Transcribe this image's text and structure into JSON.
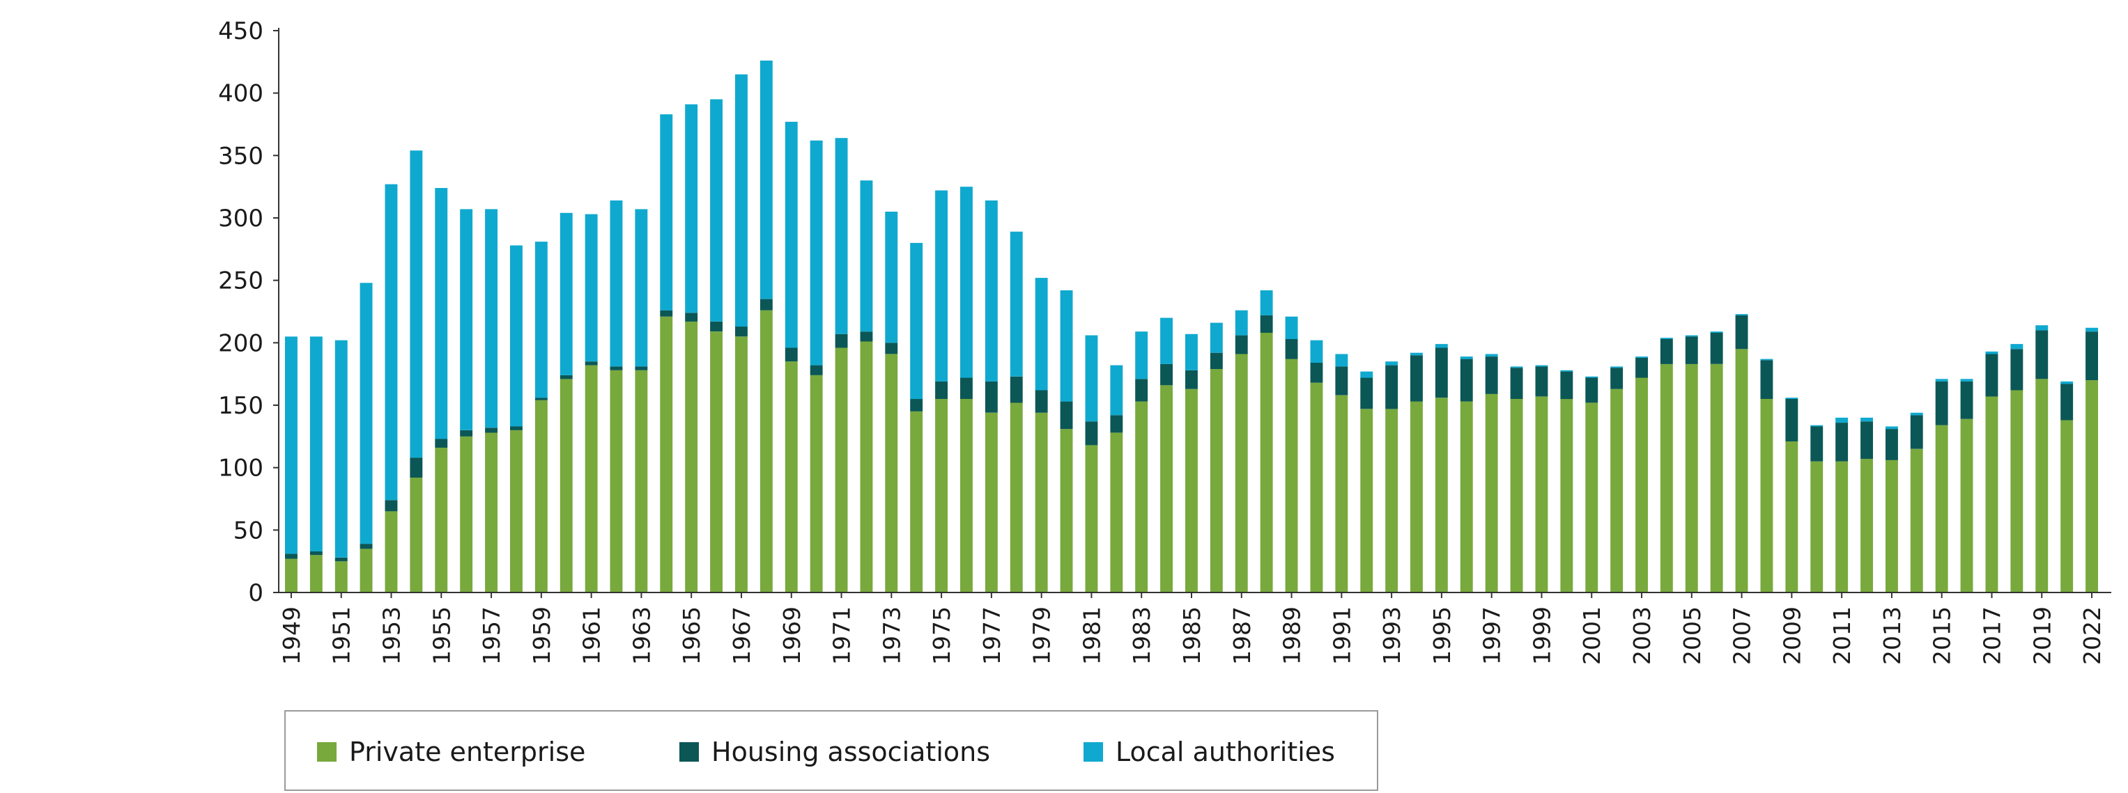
{
  "colors": {
    "private": "#78a93c",
    "housing": "#0b5756",
    "local": "#0fa9cf",
    "axis": "#333333",
    "legend_border": "#9a9a9a"
  },
  "legend": [
    {
      "key": "private",
      "label": "Private enterprise"
    },
    {
      "key": "housing",
      "label": "Housing associations"
    },
    {
      "key": "local",
      "label": "Local authorities"
    }
  ],
  "chart_data": {
    "type": "bar",
    "stacked": true,
    "ylim": [
      0,
      450
    ],
    "yticks": [
      0,
      50,
      100,
      150,
      200,
      250,
      300,
      350,
      400,
      450
    ],
    "legend_position": "bottom-left",
    "grid": false,
    "xtick_labels": [
      "1949",
      "1951",
      "1953",
      "1955",
      "1957",
      "1959",
      "1961",
      "1963",
      "1965",
      "1967",
      "1969",
      "1971",
      "1973",
      "1975",
      "1977",
      "1979",
      "1981",
      "1983",
      "1985",
      "1987",
      "1989",
      "1991",
      "1993",
      "1995",
      "1997",
      "1999",
      "2001",
      "2003",
      "2005",
      "2007",
      "2009",
      "2011",
      "2013",
      "2015",
      "2017",
      "2019",
      "2022"
    ],
    "categories": [
      "1949",
      "1950",
      "1951",
      "1952",
      "1953",
      "1954",
      "1955",
      "1956",
      "1957",
      "1958",
      "1959",
      "1960",
      "1961",
      "1962",
      "1963",
      "1964",
      "1965",
      "1966",
      "1967",
      "1968",
      "1969",
      "1970",
      "1971",
      "1972",
      "1973",
      "1974",
      "1975",
      "1976",
      "1977",
      "1978",
      "1979",
      "1980",
      "1981",
      "1982",
      "1983",
      "1984",
      "1985",
      "1986",
      "1987",
      "1988",
      "1989",
      "1990",
      "1991",
      "1992",
      "1993",
      "1994",
      "1995",
      "1996",
      "1997",
      "1998",
      "1999",
      "2000",
      "2001",
      "2002",
      "2003",
      "2004",
      "2005",
      "2006",
      "2007",
      "2008",
      "2009",
      "2010",
      "2011",
      "2012",
      "2013",
      "2014",
      "2015",
      "2016",
      "2017",
      "2018",
      "2019",
      "2021",
      "2022"
    ],
    "series": [
      {
        "name": "Private enterprise",
        "key": "private",
        "values": [
          27,
          30,
          25,
          35,
          65,
          92,
          116,
          125,
          128,
          130,
          154,
          171,
          182,
          178,
          178,
          221,
          217,
          209,
          205,
          226,
          185,
          174,
          196,
          201,
          191,
          145,
          155,
          155,
          144,
          152,
          144,
          131,
          118,
          128,
          153,
          166,
          163,
          179,
          191,
          208,
          187,
          168,
          158,
          147,
          147,
          153,
          156,
          153,
          159,
          155,
          157,
          155,
          152,
          163,
          172,
          183,
          183,
          183,
          195,
          155,
          121,
          105,
          105,
          107,
          106,
          115,
          134,
          139,
          157,
          162,
          171,
          138,
          170
        ]
      },
      {
        "name": "Housing associations",
        "key": "housing",
        "values": [
          4,
          3,
          3,
          4,
          9,
          16,
          7,
          5,
          4,
          3,
          2,
          3,
          3,
          3,
          3,
          5,
          7,
          8,
          8,
          9,
          11,
          8,
          11,
          8,
          9,
          10,
          14,
          17,
          25,
          21,
          18,
          22,
          19,
          14,
          18,
          17,
          15,
          13,
          15,
          14,
          16,
          16,
          23,
          25,
          35,
          37,
          40,
          34,
          30,
          25,
          24,
          22,
          20,
          17,
          16,
          20,
          22,
          25,
          27,
          31,
          34,
          28,
          31,
          30,
          25,
          27,
          35,
          30,
          34,
          33,
          39,
          29,
          39
        ]
      },
      {
        "name": "Local authorities",
        "key": "local",
        "values": [
          174,
          172,
          174,
          209,
          253,
          246,
          201,
          177,
          175,
          145,
          125,
          130,
          118,
          133,
          126,
          157,
          167,
          178,
          202,
          191,
          181,
          180,
          157,
          121,
          105,
          125,
          153,
          153,
          145,
          116,
          90,
          89,
          69,
          40,
          38,
          37,
          29,
          24,
          20,
          20,
          18,
          18,
          10,
          5,
          3,
          2,
          3,
          2,
          2,
          1,
          1,
          1,
          1,
          1,
          1,
          1,
          1,
          1,
          1,
          1,
          1,
          1,
          4,
          3,
          2,
          2,
          2,
          2,
          2,
          4,
          4,
          2,
          3
        ]
      }
    ]
  }
}
